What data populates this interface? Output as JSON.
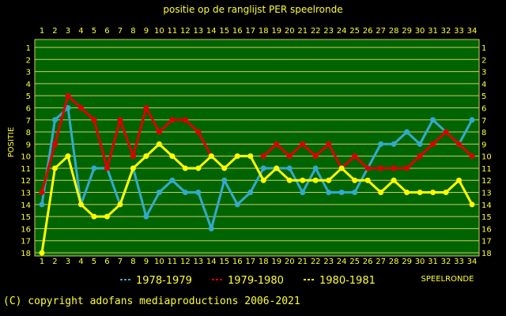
{
  "chart_data": {
    "type": "line",
    "title": "positie op de ranglijst PER speelronde",
    "xlabel": "SPEELRONDE",
    "ylabel": "POSITIE",
    "x": [
      1,
      2,
      3,
      4,
      5,
      6,
      7,
      8,
      9,
      10,
      11,
      12,
      13,
      14,
      15,
      16,
      17,
      18,
      19,
      20,
      21,
      22,
      23,
      24,
      25,
      26,
      27,
      28,
      29,
      30,
      31,
      32,
      33,
      34
    ],
    "xlim": [
      1,
      34
    ],
    "ylim": [
      1,
      18
    ],
    "y_inverted": true,
    "y_ticks": [
      1,
      2,
      3,
      4,
      5,
      6,
      7,
      8,
      9,
      10,
      11,
      12,
      13,
      14,
      15,
      16,
      17,
      18
    ],
    "grid": true,
    "legend_position": "bottom",
    "series": [
      {
        "name": "1978-1979",
        "color": "#33aacc",
        "values": [
          14,
          7,
          6,
          14,
          11,
          11,
          14,
          11,
          15,
          13,
          12,
          13,
          13,
          16,
          12,
          14,
          13,
          11,
          11,
          11,
          13,
          11,
          13,
          13,
          13,
          11,
          9,
          9,
          8,
          9,
          7,
          8,
          9,
          7
        ]
      },
      {
        "name": "1979-1980",
        "color": "#dd0000",
        "values": [
          13,
          9,
          5,
          6,
          7,
          11,
          7,
          10,
          6,
          8,
          7,
          7,
          8,
          10,
          null,
          null,
          null,
          10,
          9,
          10,
          9,
          10,
          9,
          11,
          10,
          11,
          11,
          11,
          11,
          10,
          9,
          8,
          9,
          10
        ]
      },
      {
        "name": "1980-1981",
        "color": "#ffff00",
        "values": [
          18,
          11,
          10,
          14,
          15,
          15,
          14,
          11,
          10,
          9,
          10,
          11,
          11,
          10,
          11,
          10,
          10,
          12,
          11,
          12,
          12,
          12,
          12,
          11,
          12,
          12,
          13,
          12,
          13,
          13,
          13,
          13,
          12,
          14
        ]
      }
    ]
  },
  "colors": {
    "background": "#000000",
    "plot_background": "#006400",
    "grid": "#cccc66",
    "text": "#ffff33"
  },
  "footer": {
    "copyright": "(C) copyright adofans mediaproductions 2006-2021"
  }
}
